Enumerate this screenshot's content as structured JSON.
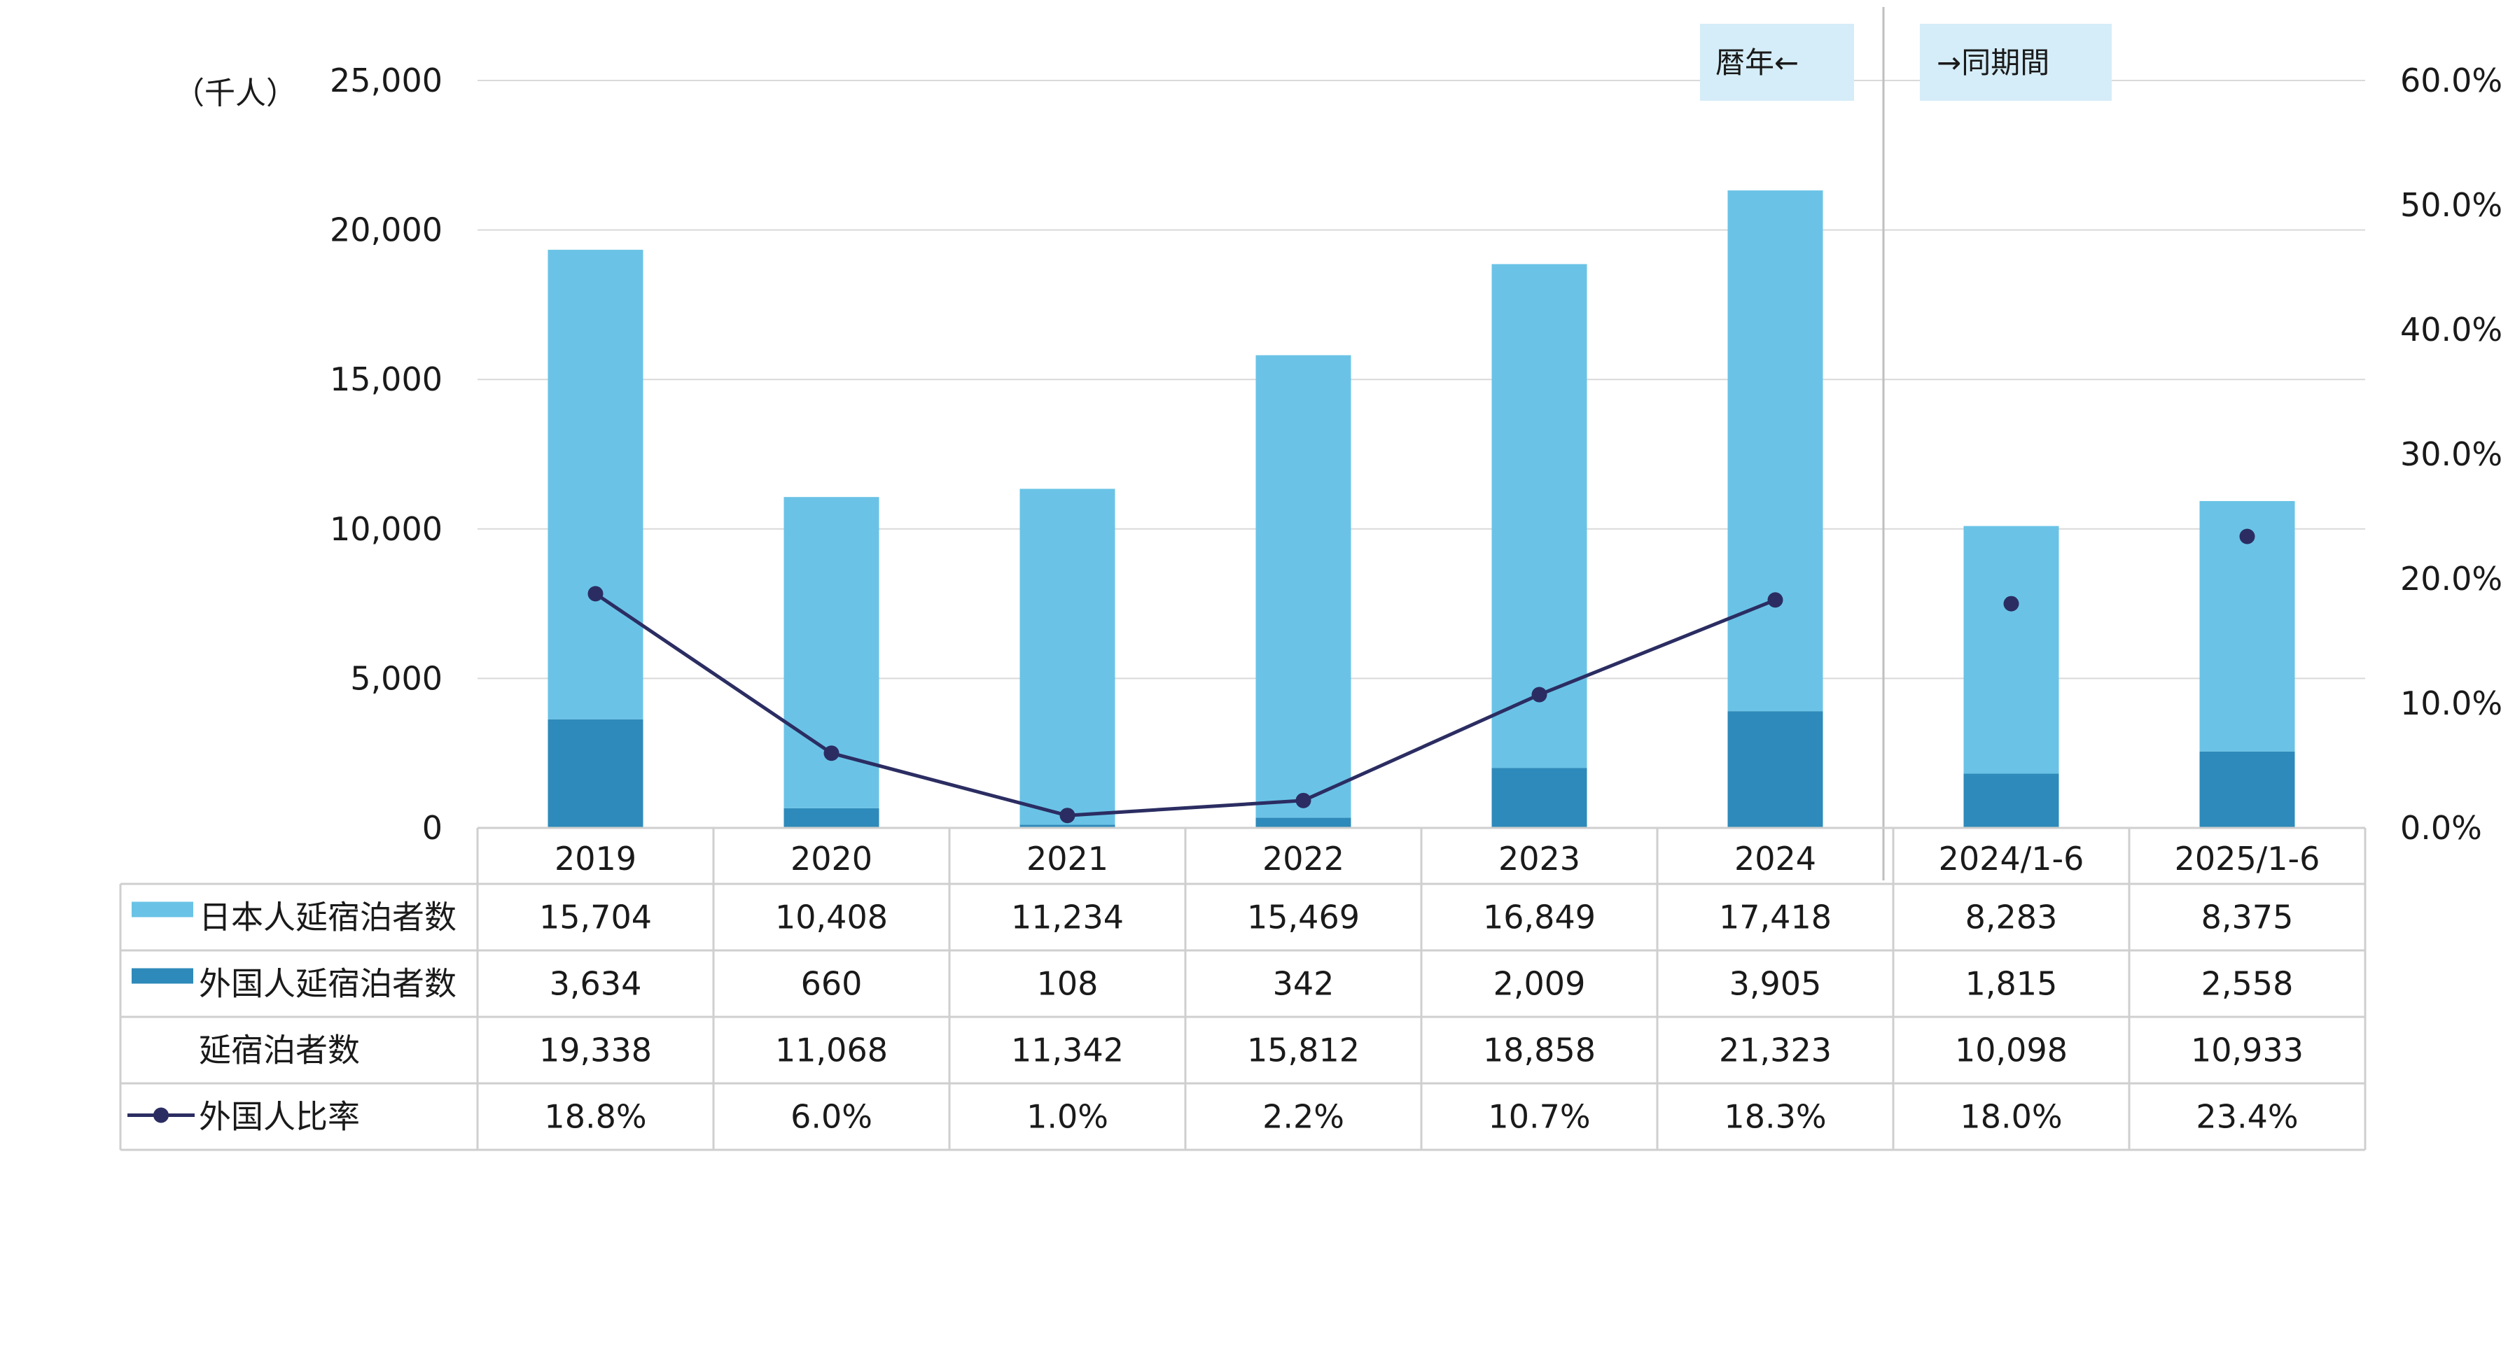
{
  "chart_data": {
    "type": "bar",
    "unit_label": "（千人）",
    "categories": [
      "2019",
      "2020",
      "2021",
      "2022",
      "2023",
      "2024",
      "2024/1-6",
      "2025/1-6"
    ],
    "y_left": {
      "ticks": [
        "0",
        "5,000",
        "10,000",
        "15,000",
        "20,000",
        "25,000"
      ],
      "ylim": [
        0,
        25000
      ]
    },
    "y_right": {
      "ticks": [
        "0.0%",
        "10.0%",
        "20.0%",
        "30.0%",
        "40.0%",
        "50.0%",
        "60.0%"
      ],
      "ylim": [
        0,
        60
      ]
    },
    "period_labels": {
      "left": "暦年←",
      "right": "→同期間"
    },
    "series": [
      {
        "name": "日本人延宿泊者数",
        "type": "bar",
        "values": [
          15704,
          10408,
          11234,
          15469,
          16849,
          17418,
          8283,
          8375
        ],
        "labels": [
          "15,704",
          "10,408",
          "11,234",
          "15,469",
          "16,849",
          "17,418",
          "8,283",
          "8,375"
        ]
      },
      {
        "name": "外国人延宿泊者数",
        "type": "bar",
        "values": [
          3634,
          660,
          108,
          342,
          2009,
          3905,
          1815,
          2558
        ],
        "labels": [
          "3,634",
          "660",
          "108",
          "342",
          "2,009",
          "3,905",
          "1,815",
          "2,558"
        ]
      },
      {
        "name": "延宿泊者数",
        "type": "total",
        "values": [
          19338,
          11068,
          11342,
          15812,
          18858,
          21323,
          10098,
          10933
        ],
        "labels": [
          "19,338",
          "11,068",
          "11,342",
          "15,812",
          "18,858",
          "21,323",
          "10,098",
          "10,933"
        ]
      },
      {
        "name": "外国人比率",
        "type": "line",
        "values": [
          18.8,
          6.0,
          1.0,
          2.2,
          10.7,
          18.3,
          18.0,
          23.4
        ],
        "labels": [
          "18.8%",
          "6.0%",
          "1.0%",
          "2.2%",
          "10.7%",
          "18.3%",
          "18.0%",
          "23.4%"
        ]
      }
    ],
    "colors": {
      "japanese": "#6ac3e6",
      "foreign": "#2e8aba",
      "line": "#2b2d62",
      "period_box": "#d5edf8",
      "grid": "#d9d9d9"
    }
  }
}
